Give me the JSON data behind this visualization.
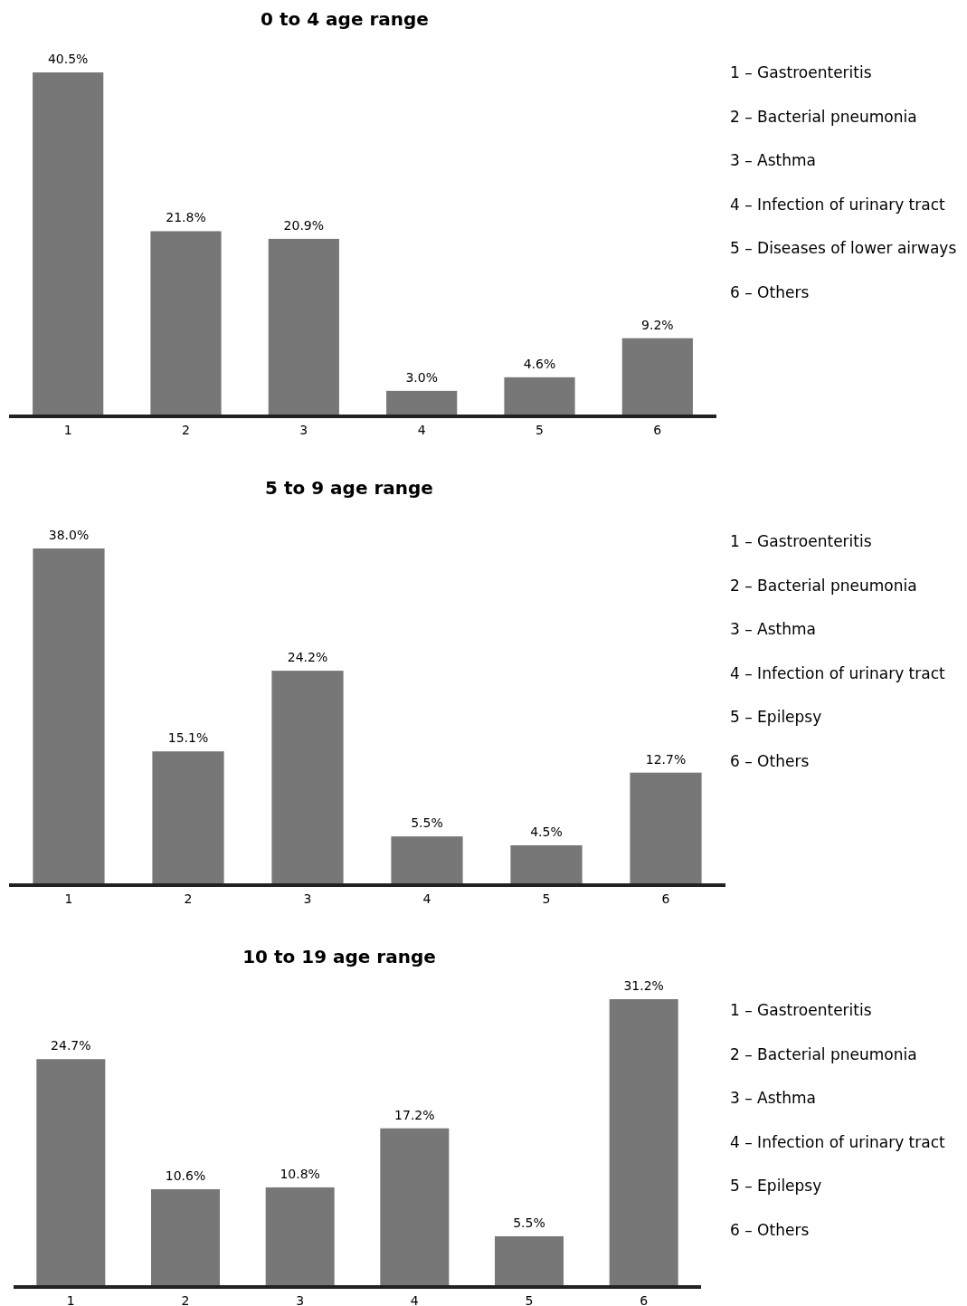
{
  "chart_data": [
    {
      "type": "bar",
      "title": "0 to 4 age range",
      "categories": [
        "1",
        "2",
        "3",
        "4",
        "5",
        "6"
      ],
      "values": [
        40.5,
        21.8,
        20.9,
        3.0,
        4.6,
        9.2
      ],
      "value_labels": [
        "40.5%",
        "21.8%",
        "20.9%",
        "3.0%",
        "4.6%",
        "9.2%"
      ],
      "color": "#777777",
      "annotations": [
        "1 – Gastroenteritis",
        "2 – Bacterial pneumonia",
        "3 – Asthma",
        "4 – Infection of urinary tract",
        "5 – Diseases of lower airways",
        "6 – Others"
      ]
    },
    {
      "type": "bar",
      "title": "5 to 9 age range",
      "categories": [
        "1",
        "2",
        "3",
        "4",
        "5",
        "6"
      ],
      "values": [
        38.0,
        15.1,
        24.2,
        5.5,
        4.5,
        12.7
      ],
      "value_labels": [
        "38.0%",
        "15.1%",
        "24.2%",
        "5.5%",
        "4.5%",
        "12.7%"
      ],
      "color": "#777777",
      "annotations": [
        "1 – Gastroenteritis",
        "2 – Bacterial pneumonia",
        "3 – Asthma",
        "4 – Infection of urinary tract",
        "5 – Epilepsy",
        "6 – Others"
      ]
    },
    {
      "type": "bar",
      "title": "10 to 19 age range",
      "categories": [
        "1",
        "2",
        "3",
        "4",
        "5",
        "6"
      ],
      "values": [
        24.7,
        10.6,
        10.8,
        17.2,
        5.5,
        31.2
      ],
      "value_labels": [
        "24.7%",
        "10.6%",
        "10.8%",
        "17.2%",
        "5.5%",
        "31.2%"
      ],
      "color": "#777777",
      "annotations": [
        "1 – Gastroenteritis",
        "2 – Bacterial pneumonia",
        "3 – Asthma",
        "4 – Infection of urinary tract",
        "5 – Epilepsy",
        "6 – Others"
      ]
    }
  ]
}
